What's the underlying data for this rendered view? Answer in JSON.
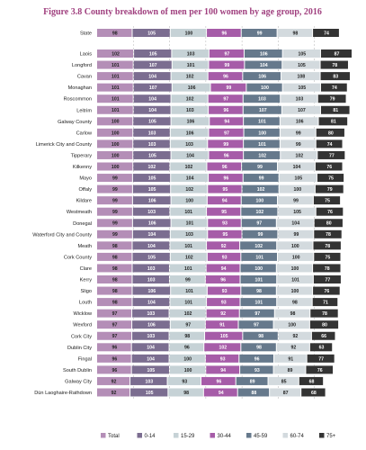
{
  "chart_data": {
    "type": "bar",
    "stacked": true,
    "orientation": "horizontal",
    "title": "Figure 3.8 County breakdown of men per 100 women by age group, 2016",
    "legend_position": "bottom",
    "gridlines": true,
    "categories": [
      "State",
      "Laois",
      "Longford",
      "Cavan",
      "Monaghan",
      "Roscommon",
      "Leitrim",
      "Galway County",
      "Carlow",
      "Limerick City and County",
      "Tipperary",
      "Kilkenny",
      "Mayo",
      "Offaly",
      "Kildare",
      "Westmeath",
      "Donegal",
      "Waterford City and County",
      "Meath",
      "Cork County",
      "Clare",
      "Kerry",
      "Sligo",
      "Louth",
      "Wicklow",
      "Wexford",
      "Cork City",
      "Dublin City",
      "Fingal",
      "South Dublin",
      "Galway City",
      "Dún Laoghaire-Rathdown"
    ],
    "series": [
      {
        "name": "Total",
        "color": "#b48eb7",
        "values": [
          98,
          102,
          101,
          101,
          101,
          101,
          101,
          100,
          100,
          100,
          100,
          100,
          99,
          99,
          99,
          99,
          99,
          99,
          98,
          98,
          98,
          98,
          98,
          98,
          97,
          97,
          97,
          96,
          96,
          96,
          92,
          92
        ]
      },
      {
        "name": "0-14",
        "color": "#7b6d90",
        "values": [
          105,
          105,
          107,
          104,
          107,
          104,
          104,
          105,
          103,
          103,
          105,
          102,
          105,
          105,
          106,
          103,
          106,
          104,
          104,
          105,
          103,
          103,
          106,
          104,
          103,
          106,
          103,
          104,
          104,
          105,
          103,
          105
        ]
      },
      {
        "name": "15-29",
        "color": "#c6d2d6",
        "values": [
          100,
          103,
          101,
          102,
          106,
          102,
          103,
          106,
          106,
          103,
          104,
          102,
          104,
          102,
          100,
          101,
          101,
          103,
          101,
          102,
          101,
          99,
          101,
          101,
          102,
          97,
          98,
          96,
          100,
          100,
          93,
          98
        ]
      },
      {
        "name": "30-44",
        "color": "#a65ca8",
        "values": [
          96,
          97,
          99,
          96,
          99,
          97,
          96,
          94,
          97,
          99,
          96,
          96,
          96,
          95,
          94,
          95,
          93,
          95,
          92,
          93,
          94,
          96,
          93,
          93,
          92,
          91,
          105,
          102,
          93,
          94,
          96,
          94
        ]
      },
      {
        "name": "45-59",
        "color": "#66798c",
        "values": [
          99,
          106,
          104,
          106,
          100,
          103,
          107,
          101,
          100,
          101,
          102,
          99,
          99,
          102,
          100,
          102,
          97,
          99,
          102,
          101,
          100,
          101,
          98,
          101,
          97,
          97,
          98,
          98,
          96,
          93,
          89,
          88
        ]
      },
      {
        "name": "60-74",
        "color": "#d3dade",
        "values": [
          98,
          105,
          105,
          108,
          105,
          103,
          107,
          106,
          99,
          99,
          102,
          104,
          105,
          100,
          99,
          105,
          104,
          99,
          100,
          100,
          100,
          101,
          100,
          98,
          98,
          100,
          92,
          92,
          91,
          89,
          85,
          87
        ]
      },
      {
        "name": "75+",
        "color": "#333333",
        "values": [
          74,
          87,
          78,
          83,
          74,
          79,
          81,
          81,
          80,
          74,
          77,
          76,
          75,
          79,
          75,
          76,
          80,
          78,
          78,
          75,
          78,
          77,
          76,
          71,
          78,
          80,
          66,
          63,
          77,
          76,
          68,
          68
        ]
      }
    ]
  }
}
